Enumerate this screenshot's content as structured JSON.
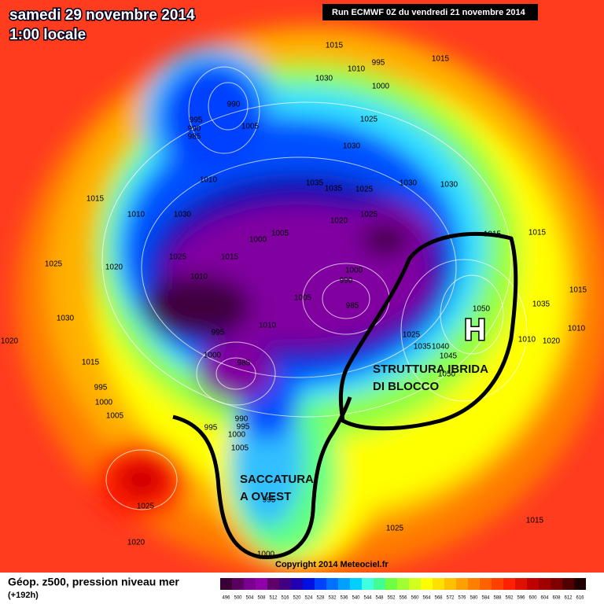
{
  "header": {
    "title": "samedi 29 novembre 2014",
    "time": "1:00 locale",
    "run": "Run ECMWF 0Z du vendredi 21 novembre 2014"
  },
  "annotations": {
    "block_line1": "STRUTTURA IBRIDA",
    "block_line2": "DI BLOCCO",
    "trough_line1": "SACCATURA",
    "trough_line2": "A OVEST",
    "high": "H"
  },
  "pressure_labels": [
    "1015",
    "995",
    "1010",
    "1030",
    "1000",
    "1015",
    "990",
    "995",
    "990",
    "985",
    "1005",
    "1025",
    "1030",
    "1010",
    "1035",
    "1035",
    "1025",
    "1030",
    "1030",
    "1015",
    "1010",
    "1030",
    "1020",
    "1005",
    "1000",
    "1025",
    "1015",
    "1015",
    "1025",
    "1015",
    "1010",
    "1025",
    "1020",
    "1000",
    "990",
    "985",
    "1005",
    "1010",
    "995",
    "1000",
    "985",
    "1030",
    "1020",
    "1015",
    "995",
    "1000",
    "1005",
    "995",
    "990",
    "995",
    "1000",
    "1005",
    "1050",
    "1045",
    "1040",
    "1035",
    "1025",
    "1050",
    "1025",
    "1020",
    "1015",
    "1025",
    "1000",
    "995",
    "1010",
    "1020",
    "1010",
    "1035",
    "1015"
  ],
  "footer": {
    "caption": "Géop. z500, pression niveau mer",
    "lead": "(+192h)",
    "copyright": "Copyright 2014 Meteociel.fr"
  },
  "color_scale": {
    "labels": [
      "496",
      "500",
      "504",
      "508",
      "512",
      "516",
      "520",
      "524",
      "528",
      "532",
      "536",
      "540",
      "544",
      "548",
      "552",
      "556",
      "560",
      "564",
      "568",
      "572",
      "576",
      "580",
      "584",
      "588",
      "592",
      "596",
      "600",
      "604",
      "608",
      "612",
      "616"
    ],
    "colors": [
      "#3a0036",
      "#5a0060",
      "#7a0090",
      "#8f00a8",
      "#60006a",
      "#400080",
      "#2000b0",
      "#0010e0",
      "#0040ff",
      "#0070ff",
      "#00a0ff",
      "#00d0ff",
      "#40ffe0",
      "#40ff90",
      "#70ff40",
      "#a0ff30",
      "#d0ff20",
      "#ffff00",
      "#ffe000",
      "#ffc000",
      "#ffa000",
      "#ff8000",
      "#ff6000",
      "#ff4000",
      "#ff2000",
      "#e01000",
      "#c00000",
      "#a00000",
      "#800000",
      "#500000",
      "#200000"
    ]
  }
}
